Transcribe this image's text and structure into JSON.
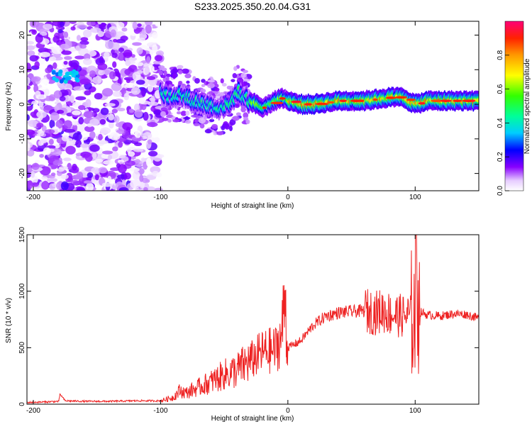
{
  "chart_data": [
    {
      "type": "heatmap",
      "title": "S233.2025.350.20.04.G31",
      "xlabel": "Height of straight line (km)",
      "ylabel": "Frequency (Hz)",
      "xlim": [
        -205,
        150
      ],
      "ylim": [
        -25,
        24
      ],
      "xticks": [
        -200,
        -100,
        0,
        100
      ],
      "yticks": [
        -20,
        -10,
        0,
        10,
        20
      ],
      "ridge": {
        "x": [
          -200,
          -185,
          -180,
          -175,
          -170,
          -160,
          -140,
          -120,
          -100,
          -95,
          -85,
          -75,
          -65,
          -55,
          -45,
          -40,
          -35,
          -30,
          -20,
          -10,
          -5,
          0,
          10,
          20,
          40,
          60,
          80,
          90,
          95,
          100,
          110,
          120,
          150
        ],
        "y": [
          8,
          7,
          8,
          9,
          10,
          6,
          5,
          3,
          4,
          2,
          3,
          1,
          0,
          -1,
          0,
          4,
          2,
          1,
          -1,
          1,
          2,
          1,
          0,
          0,
          1,
          1,
          2,
          2,
          1,
          0,
          1,
          1,
          1
        ]
      },
      "colorbar": {
        "label": "Normalized spectral amplitude",
        "range": [
          0,
          1
        ],
        "ticks": [
          0.0,
          0.2,
          0.4,
          0.6,
          0.8
        ],
        "tick_labels": [
          "0.0",
          "0.2",
          "0.4",
          "0.6",
          "0.8"
        ]
      }
    },
    {
      "type": "line",
      "xlabel": "Height of straight line (km)",
      "ylabel": "SNR (10 * v/v)",
      "xlim": [
        -205,
        150
      ],
      "ylim": [
        0,
        1500
      ],
      "xticks": [
        -200,
        -100,
        0,
        100
      ],
      "yticks": [
        0,
        500,
        1000,
        1500
      ],
      "color": "#ee2222",
      "series": [
        {
          "name": "SNR",
          "x": [
            -205,
            -190,
            -180,
            -179,
            -175,
            -160,
            -140,
            -120,
            -100,
            -90,
            -85,
            -80,
            -70,
            -60,
            -50,
            -40,
            -30,
            -20,
            -10,
            -5,
            -2,
            -1,
            0,
            10,
            20,
            30,
            40,
            50,
            60,
            65,
            70,
            75,
            80,
            90,
            95,
            100,
            101,
            103,
            110,
            120,
            130,
            140,
            150
          ],
          "y": [
            15,
            20,
            25,
            90,
            30,
            25,
            25,
            30,
            30,
            60,
            120,
            100,
            150,
            200,
            260,
            300,
            380,
            460,
            480,
            600,
            1000,
            550,
            500,
            560,
            700,
            780,
            810,
            820,
            825,
            820,
            810,
            830,
            800,
            780,
            790,
            800,
            1500,
            820,
            790,
            780,
            800,
            795,
            760
          ]
        }
      ]
    }
  ]
}
